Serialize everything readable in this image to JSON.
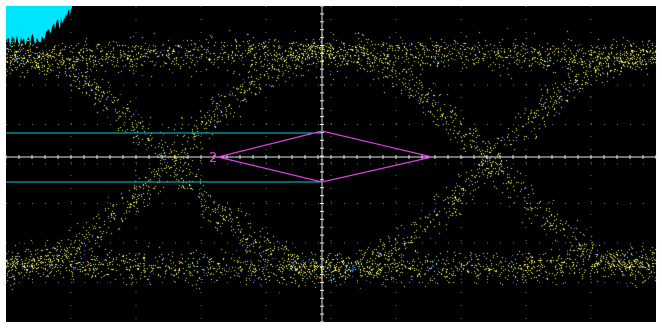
{
  "colors": {
    "background": "#000000",
    "frame": "#ffffff",
    "grid": "#c8c8c8",
    "axis": "#e6e6e6",
    "mask": "#e040e0",
    "cursor": "#00d0d0",
    "histogram": "#00e5ff",
    "density": [
      "#1a1aa0",
      "#3aa0ff",
      "#2ad0a0",
      "#e02020",
      "#ff6a00",
      "#ffd000",
      "#ffff60"
    ]
  },
  "mask": {
    "label": "2",
    "label_color": "#e040e0"
  },
  "cursors": {
    "count": 2,
    "color": "#00d0d0"
  },
  "histogram": {
    "color": "#00e5ff"
  },
  "icons": {
    "histogram": "histogram-icon"
  }
}
